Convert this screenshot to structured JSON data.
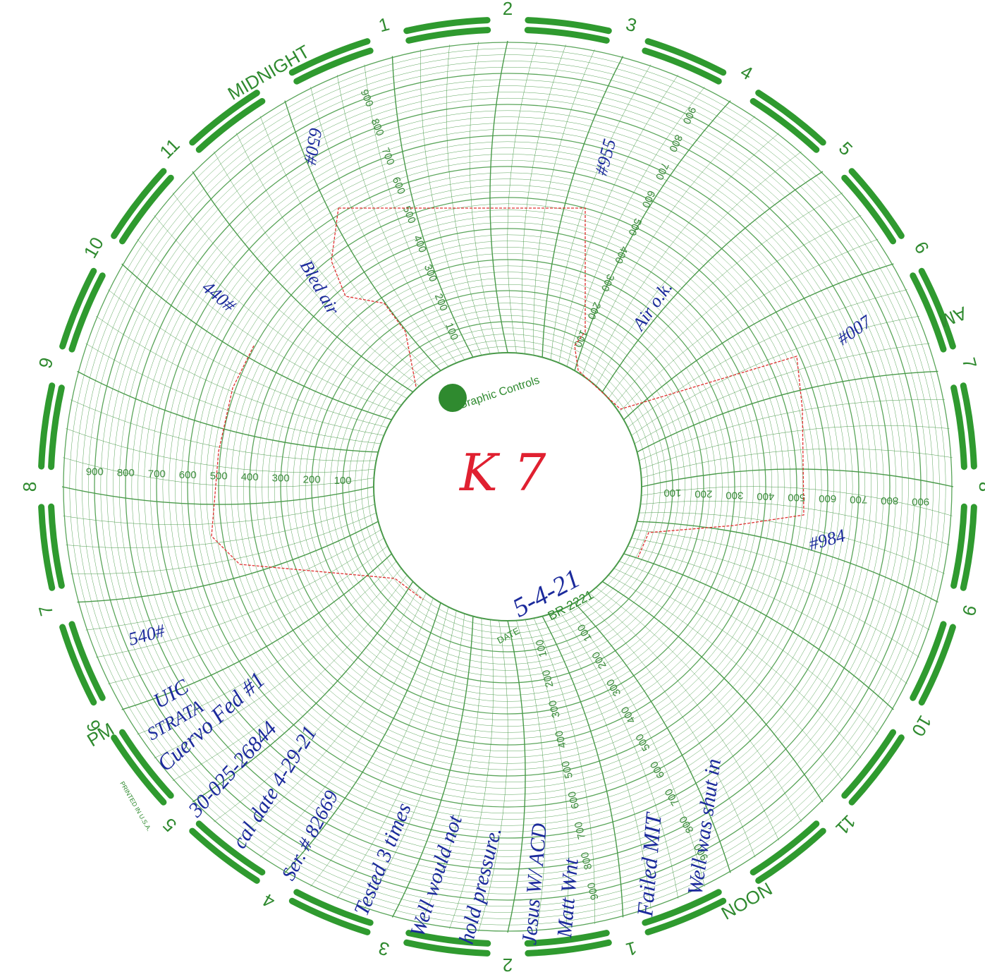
{
  "chart": {
    "hours": [
      "MIDNIGHT",
      "1",
      "2",
      "3",
      "4",
      "5",
      "6",
      "7",
      "8",
      "9",
      "10",
      "11",
      "NOON",
      "1",
      "2",
      "3",
      "4",
      "5",
      "6",
      "7",
      "8",
      "9",
      "10",
      "11"
    ],
    "am_label": "AM",
    "pm_label": "PM",
    "scale": [
      100,
      200,
      300,
      400,
      500,
      600,
      700,
      800,
      900
    ],
    "brand": "Graphic Controls",
    "printed": "PRINTED IN U.S.A."
  },
  "stamp": {
    "date_label": "DATE",
    "date": "5-4-21",
    "chart_no": "BR 2221",
    "mark": "K 7"
  },
  "notes": {
    "top_left": "650#",
    "top_right": "#955",
    "left_upper": "440#",
    "bled": "Bled air",
    "air_ok": "Air o.k.",
    "right_upper": "#007",
    "right_lower": "#984",
    "left_lower": "540#",
    "uic": "UIC",
    "strata": "STRATA",
    "well": "Cuervo Fed #1",
    "api": "30-025-26844",
    "cal": "cal date 4-29-21",
    "ser": "Ser. # 82669",
    "tested": "Tested 3 times",
    "would": "Well would not",
    "hold": "hold pressure.",
    "jesus": "Jesus W/ ACD",
    "matt": "Matt Wnt",
    "failed": "Failed MIT",
    "shut": "Well was shut in"
  }
}
